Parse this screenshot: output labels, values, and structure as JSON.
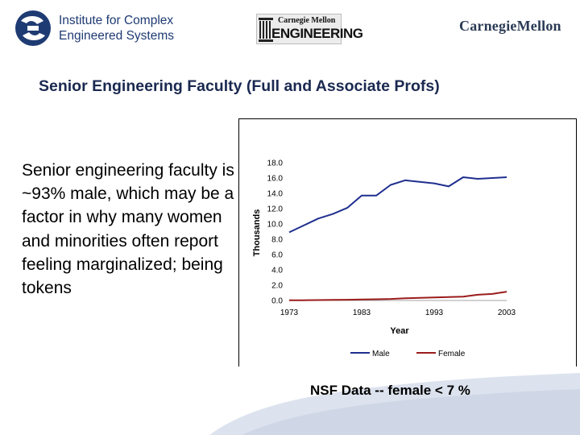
{
  "header": {
    "icse_logo": {
      "line1": "Institute for Complex",
      "line2": "Engineered Systems"
    },
    "cmu_engineering_logo": {
      "top": "Carnegie Mellon",
      "bottom": "ENGINEERING"
    },
    "cmu_wordmark": "CarnegieMellon"
  },
  "slide": {
    "title": "Senior Engineering Faculty (Full and Associate Profs)",
    "body": "Senior engineering faculty is ~93% male, which may be a factor in why many women and minorities often report feeling marginalized; being tokens",
    "caption": "NSF Data  --  female <  7 %"
  },
  "colors": {
    "male": "#1f2f8f",
    "female": "#9b1c1c",
    "title": "#1a2950"
  },
  "chart_data": {
    "type": "line",
    "title": "",
    "xlabel": "Year",
    "ylabel": "Thousands",
    "xlim": [
      1973,
      2003
    ],
    "ylim": [
      0,
      18
    ],
    "x_ticks": [
      "1973",
      "1983",
      "1993",
      "2003"
    ],
    "y_ticks": [
      "0.0",
      "2.0",
      "4.0",
      "6.0",
      "8.0",
      "10.0",
      "12.0",
      "14.0",
      "16.0",
      "18.0"
    ],
    "legend": "bottom",
    "series": [
      {
        "name": "Male",
        "color": "#1f2f8f",
        "x": [
          1973,
          1975,
          1977,
          1979,
          1981,
          1983,
          1985,
          1987,
          1989,
          1991,
          1993,
          1995,
          1997,
          1999,
          2001,
          2003
        ],
        "values": [
          8.9,
          9.8,
          10.7,
          11.3,
          12.1,
          13.7,
          13.7,
          15.1,
          15.7,
          15.5,
          15.3,
          14.9,
          16.1,
          15.9,
          16.0,
          16.1
        ]
      },
      {
        "name": "Female",
        "color": "#9b1c1c",
        "x": [
          1973,
          1975,
          1977,
          1979,
          1981,
          1983,
          1985,
          1987,
          1989,
          1991,
          1993,
          1995,
          1997,
          1999,
          2001,
          2003
        ],
        "values": [
          0.02,
          0.03,
          0.05,
          0.07,
          0.1,
          0.13,
          0.16,
          0.2,
          0.28,
          0.35,
          0.4,
          0.45,
          0.5,
          0.75,
          0.85,
          1.15
        ]
      }
    ]
  }
}
